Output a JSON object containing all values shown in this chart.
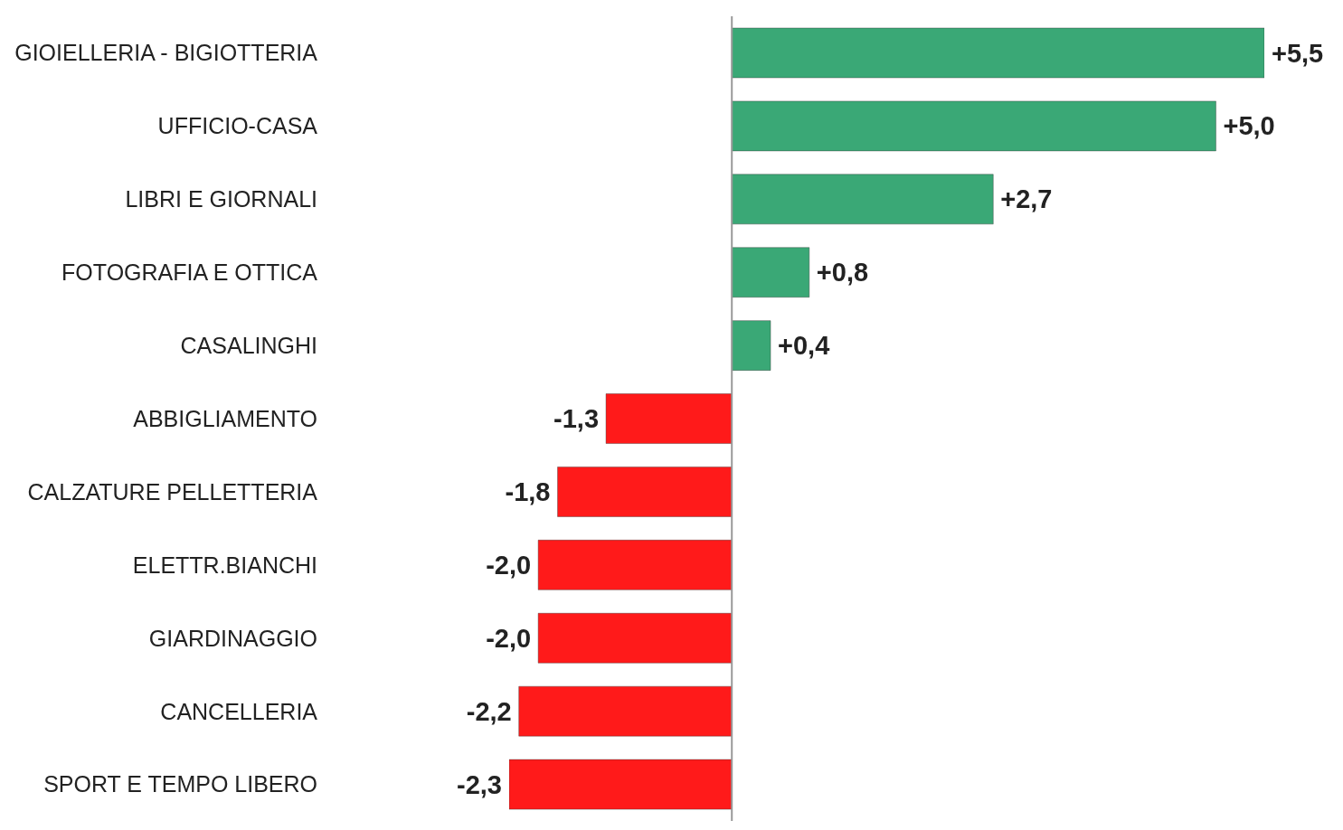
{
  "chart_data": {
    "type": "bar",
    "orientation": "horizontal",
    "categories": [
      "GIOIELLERIA - BIGIOTTERIA",
      "UFFICIO-CASA",
      "LIBRI E GIORNALI",
      "FOTOGRAFIA E OTTICA",
      "CASALINGHI",
      "ABBIGLIAMENTO",
      "CALZATURE PELLETTERIA",
      "ELETTR.BIANCHI",
      "GIARDINAGGIO",
      "CANCELLERIA",
      "SPORT E TEMPO LIBERO"
    ],
    "values": [
      5.5,
      5.0,
      2.7,
      0.8,
      0.4,
      -1.3,
      -1.8,
      -2.0,
      -2.0,
      -2.2,
      -2.3
    ],
    "value_labels": [
      "+5,5",
      "+5,0",
      "+2,7",
      "+0,8",
      "+0,4",
      "-1,3",
      "-1,8",
      "-2,0",
      "-2,0",
      "-2,2",
      "-2,3"
    ],
    "colors": [
      "#3aa876",
      "#3aa876",
      "#3aa876",
      "#3aa876",
      "#3aa876",
      "#ff1a1a",
      "#ff1a1a",
      "#ff1a1a",
      "#ff1a1a",
      "#ff1a1a",
      "#ff1a1a"
    ],
    "tick_labels": "y"
  }
}
